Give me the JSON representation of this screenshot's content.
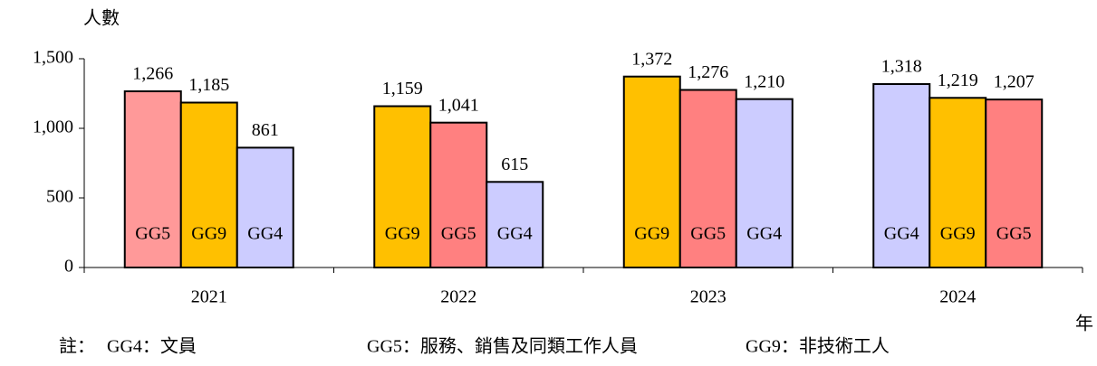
{
  "chart_data": {
    "type": "bar",
    "y_label": "人數",
    "x_label": "年",
    "categories": [
      "2021",
      "2022",
      "2023",
      "2024"
    ],
    "bars": [
      [
        {
          "label": "GG5",
          "value": 1266,
          "value_label": "1,266",
          "color": "#ff9999"
        },
        {
          "label": "GG9",
          "value": 1185,
          "value_label": "1,185",
          "color": "#ffc000"
        },
        {
          "label": "GG4",
          "value": 861,
          "value_label": "861",
          "color": "#ccccff"
        }
      ],
      [
        {
          "label": "GG9",
          "value": 1159,
          "value_label": "1,159",
          "color": "#ffc000"
        },
        {
          "label": "GG5",
          "value": 1041,
          "value_label": "1,041",
          "color": "#ff8080"
        },
        {
          "label": "GG4",
          "value": 615,
          "value_label": "615",
          "color": "#ccccff"
        }
      ],
      [
        {
          "label": "GG9",
          "value": 1372,
          "value_label": "1,372",
          "color": "#ffc000"
        },
        {
          "label": "GG5",
          "value": 1276,
          "value_label": "1,276",
          "color": "#ff8080"
        },
        {
          "label": "GG4",
          "value": 1210,
          "value_label": "1,210",
          "color": "#ccccff"
        }
      ],
      [
        {
          "label": "GG4",
          "value": 1318,
          "value_label": "1,318",
          "color": "#ccccff"
        },
        {
          "label": "GG9",
          "value": 1219,
          "value_label": "1,219",
          "color": "#ffc000"
        },
        {
          "label": "GG5",
          "value": 1207,
          "value_label": "1,207",
          "color": "#ff8080"
        }
      ]
    ],
    "ylim": [
      0,
      1500
    ],
    "yticks": [
      0,
      500,
      {
        "value": 1000,
        "label": "1,000"
      },
      {
        "value": 1500,
        "label": "1,500"
      }
    ],
    "note": {
      "prefix": "註：",
      "items": [
        "GG4：文員",
        "GG5：服務、銷售及同類工作人員",
        "GG9：非技術工人"
      ]
    }
  }
}
